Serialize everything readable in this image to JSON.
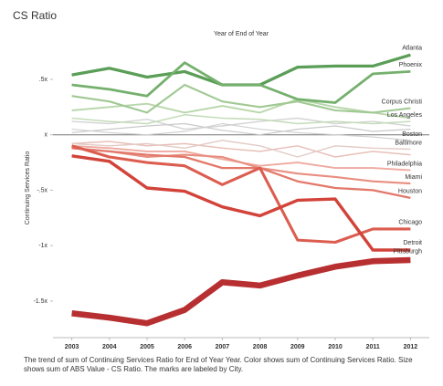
{
  "chart_data": {
    "type": "line",
    "title": "CS Ratio",
    "x_label": "Year of End of Year",
    "y_label": "Continuing Services Ratio",
    "caption": "The trend of sum of Continuing Services Ratio for End of Year Year.  Color shows sum of Continuing Services Ratio.  Size shows sum of ABS Value - CS Ratio.  The marks are labeled by City.",
    "x": [
      2003,
      2004,
      2005,
      2006,
      2007,
      2008,
      2009,
      2010,
      2011,
      2012
    ],
    "xlim": [
      2002.5,
      2012.5
    ],
    "ylim": [
      -1.83,
      0.87
    ],
    "yticks": [
      {
        "value": 0.5,
        "label": ".5x"
      },
      {
        "value": 0,
        "label": "x"
      },
      {
        "value": -0.5,
        "label": "-.5x"
      },
      {
        "value": -1,
        "label": "-1x"
      },
      {
        "value": -1.5,
        "label": "-1.5x"
      }
    ],
    "zero_line": true,
    "series": [
      {
        "name": null,
        "color": "#d4d4d4",
        "values": [
          0.12,
          0.1,
          0.14,
          0.05,
          0.08,
          0.12,
          0.15,
          0.1,
          0.12,
          0.08
        ]
      },
      {
        "name": null,
        "color": "#c9c9c9",
        "values": [
          0.02,
          0.05,
          0.08,
          0.1,
          0.04,
          0.0,
          0.05,
          0.08,
          0.03,
          0.05
        ]
      },
      {
        "name": null,
        "color": "#e8c0b8",
        "values": [
          -0.08,
          -0.06,
          -0.1,
          -0.08,
          -0.12,
          -0.15,
          -0.1,
          -0.2,
          -0.15,
          -0.18
        ]
      },
      {
        "name": null,
        "color": "#b9d7ac",
        "values": [
          0.22,
          0.25,
          0.28,
          0.2,
          0.26,
          0.2,
          0.32,
          0.25,
          0.2,
          0.15
        ]
      },
      {
        "name": "Atlanta",
        "color": "#5a9e57",
        "values": [
          0.54,
          0.6,
          0.52,
          0.57,
          0.45,
          0.45,
          0.61,
          0.62,
          0.62,
          0.72
        ]
      },
      {
        "name": "Phoenix",
        "color": "#75b06d",
        "values": [
          0.45,
          0.41,
          0.35,
          0.65,
          0.45,
          0.45,
          0.32,
          0.29,
          0.55,
          0.57
        ]
      },
      {
        "name": "Corpus Christi",
        "color": "#a1c994",
        "values": [
          0.35,
          0.3,
          0.2,
          0.45,
          0.3,
          0.25,
          0.3,
          0.22,
          0.2,
          0.24
        ]
      },
      {
        "name": "Los Angeles",
        "color": "#c4dcb9",
        "values": [
          0.15,
          0.12,
          0.1,
          0.18,
          0.15,
          0.14,
          0.1,
          0.12,
          0.1,
          0.12
        ]
      },
      {
        "name": "Boston",
        "color": "#cfcfcf",
        "values": [
          0.05,
          0.02,
          0.0,
          0.03,
          0.1,
          0.05,
          0.02,
          0.0,
          -0.02,
          -0.05
        ]
      },
      {
        "name": "Baltimore",
        "color": "#e3cbc6",
        "values": [
          -0.08,
          -0.1,
          -0.08,
          -0.12,
          -0.05,
          -0.1,
          -0.2,
          -0.1,
          -0.12,
          -0.13
        ]
      },
      {
        "name": "Philadelphia",
        "color": "#eeaaa0",
        "values": [
          -0.1,
          -0.12,
          -0.15,
          -0.15,
          -0.22,
          -0.28,
          -0.25,
          -0.3,
          -0.3,
          -0.32
        ]
      },
      {
        "name": "Miami",
        "color": "#e88e80",
        "values": [
          -0.12,
          -0.15,
          -0.2,
          -0.18,
          -0.2,
          -0.3,
          -0.35,
          -0.38,
          -0.42,
          -0.44
        ]
      },
      {
        "name": "Houston",
        "color": "#e3786a",
        "values": [
          -0.12,
          -0.15,
          -0.18,
          -0.2,
          -0.3,
          -0.3,
          -0.42,
          -0.48,
          -0.5,
          -0.57
        ]
      },
      {
        "name": "Chicago",
        "color": "#dc5d4f",
        "values": [
          -0.1,
          -0.2,
          -0.25,
          -0.28,
          -0.45,
          -0.3,
          -0.95,
          -0.97,
          -0.85,
          -0.85
        ]
      },
      {
        "name": "Detroit",
        "color": "#d2433a",
        "values": [
          -0.19,
          -0.24,
          -0.48,
          -0.51,
          -0.65,
          -0.73,
          -0.59,
          -0.58,
          -1.04,
          -1.04
        ]
      },
      {
        "name": "Pittsburgh",
        "color": "#b72f30",
        "values": [
          -1.61,
          -1.65,
          -1.7,
          -1.58,
          -1.33,
          -1.36,
          -1.27,
          -1.19,
          -1.14,
          -1.13
        ]
      }
    ]
  }
}
